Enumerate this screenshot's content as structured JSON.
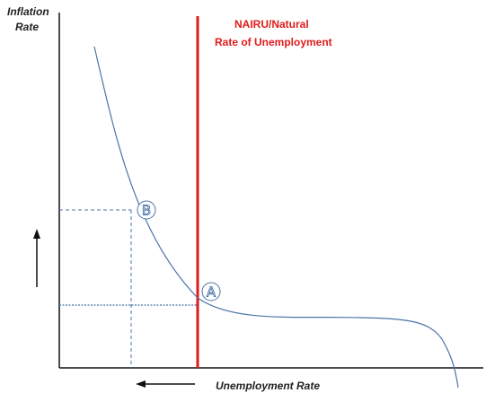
{
  "labels": {
    "y_axis_line1": "Inflation",
    "y_axis_line2": "Rate",
    "x_axis": "Unemployment Rate",
    "nairu_line1": "NAIRU/Natural",
    "nairu_line2": "Rate of Unemployment",
    "point_a": "A",
    "point_b": "B"
  },
  "colors": {
    "curve": "#4a74a8",
    "nairu": "#e01b1b",
    "nairu_text": "#e01b1b",
    "axis": "#111111",
    "guide_lines": "#4a74a8",
    "arrows": "#111111"
  },
  "icons": {
    "up_arrow": "up-arrow-icon",
    "left_arrow": "left-arrow-icon"
  }
}
